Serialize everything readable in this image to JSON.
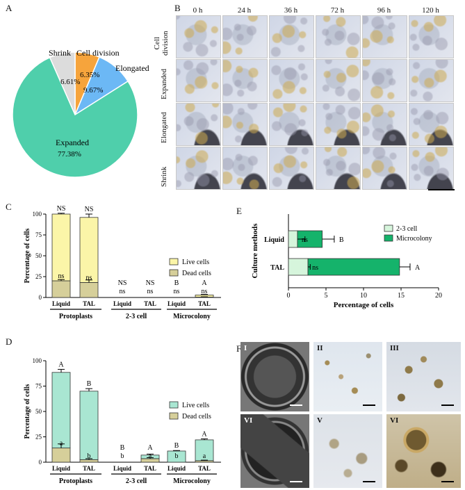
{
  "panels": {
    "a": {
      "letter": "A"
    },
    "b": {
      "letter": "B"
    },
    "c": {
      "letter": "C"
    },
    "d": {
      "letter": "D"
    },
    "e": {
      "letter": "E"
    },
    "f": {
      "letter": "F"
    }
  },
  "pie": {
    "slices": [
      {
        "label": "Cell division",
        "pct_text": "6.35%",
        "value": 6.35,
        "color": "#f6a43c"
      },
      {
        "label": "Elongated",
        "pct_text": "9.67%",
        "value": 9.67,
        "color": "#6cb8f5"
      },
      {
        "label": "Expanded",
        "pct_text": "77.38%",
        "value": 77.38,
        "color": "#4fcfab"
      },
      {
        "label": "Shrink",
        "pct_text": "6.61%",
        "value": 6.61,
        "color": "#dcdcdc"
      }
    ]
  },
  "timelapse": {
    "times": [
      "0 h",
      "24 h",
      "36 h",
      "72 h",
      "96 h",
      "120 h"
    ],
    "rows": [
      "Cell division",
      "Expanded",
      "Elongated",
      "Shrink"
    ],
    "row_label_lines": [
      [
        "Cell",
        "division"
      ],
      [
        "Expanded"
      ],
      [
        "Elongated"
      ],
      [
        "Shrink"
      ]
    ]
  },
  "chart_data": [
    {
      "id": "C",
      "type": "bar",
      "stacked": true,
      "ylabel": "Percentage of cells",
      "ylim": [
        0,
        100
      ],
      "yticks": [
        "0",
        "25",
        "50",
        "75",
        "100"
      ],
      "categories": [
        "Liquid",
        "TAL",
        "Liquid",
        "TAL",
        "Liquid",
        "TAL"
      ],
      "groups": [
        "Protoplasts",
        "2-3 cell",
        "Microcolony"
      ],
      "series": [
        {
          "name": "Dead cells",
          "color": "#d6cf9a",
          "values": [
            20,
            18,
            0,
            0,
            0,
            0.5
          ],
          "errors": [
            1.5,
            3,
            0,
            0,
            0,
            0.3
          ]
        },
        {
          "name": "Live cells",
          "color": "#fbf5a8",
          "values": [
            80,
            78,
            0,
            0,
            0,
            2.5
          ],
          "errors": [
            1,
            4,
            0,
            0,
            0,
            0.6
          ]
        }
      ],
      "top_labels": [
        "NS",
        "NS",
        "NS",
        "NS",
        "B",
        "A"
      ],
      "inner_labels": [
        "ns",
        "ns",
        "ns",
        "ns",
        "ns",
        "ns"
      ],
      "legend": [
        "Live cells",
        "Dead cells"
      ]
    },
    {
      "id": "D",
      "type": "bar",
      "stacked": true,
      "ylabel": "Percentage of cells",
      "ylim": [
        0,
        100
      ],
      "yticks": [
        "0",
        "25",
        "50",
        "75",
        "100"
      ],
      "categories": [
        "Liquid",
        "TAL",
        "Liquid",
        "TAL",
        "Liquid",
        "TAL"
      ],
      "groups": [
        "Protoplasts",
        "2-3 cell",
        "Microcolony"
      ],
      "series": [
        {
          "name": "Dead cells",
          "color": "#d6cf9a",
          "values": [
            14,
            2.5,
            0,
            3.5,
            0,
            1.5
          ],
          "errors": [
            4,
            1,
            0,
            1,
            0,
            0.5
          ]
        },
        {
          "name": "Live cells",
          "color": "#a9e6d2",
          "values": [
            74.5,
            67.5,
            0,
            3.5,
            11,
            20.5
          ],
          "errors": [
            3,
            2.5,
            0,
            1,
            0.5,
            1
          ]
        }
      ],
      "top_labels": [
        "A",
        "B",
        "B",
        "A",
        "B",
        "A"
      ],
      "inner_labels": [
        "a",
        "b",
        "b",
        "a",
        "b",
        "a"
      ],
      "legend": [
        "Live cells",
        "Dead cells"
      ]
    },
    {
      "id": "E",
      "type": "bar",
      "orientation": "horizontal",
      "stacked": true,
      "xlabel": "Percentage of cells",
      "ylabel": "Culture methods",
      "xlim": [
        0,
        20
      ],
      "xticks": [
        "0",
        "5",
        "10",
        "15",
        "20"
      ],
      "categories": [
        "Liquid",
        "TAL"
      ],
      "series": [
        {
          "name": "2-3 cell",
          "color": "#d6f5dc",
          "values": [
            1.2,
            2.6
          ],
          "errors": [
            1,
            0.3
          ]
        },
        {
          "name": "Microcolony",
          "color": "#15b36b",
          "values": [
            3.3,
            12.2
          ],
          "errors": [
            1.6,
            1.4
          ]
        }
      ],
      "letters": [
        "B",
        "A"
      ],
      "inner_labels": [
        "ns",
        "ns"
      ],
      "legend": [
        "2-3 cell",
        "Microcolony"
      ]
    }
  ],
  "photos": {
    "labels": [
      "I",
      "II",
      "III",
      "VI",
      "V",
      "VI"
    ]
  }
}
